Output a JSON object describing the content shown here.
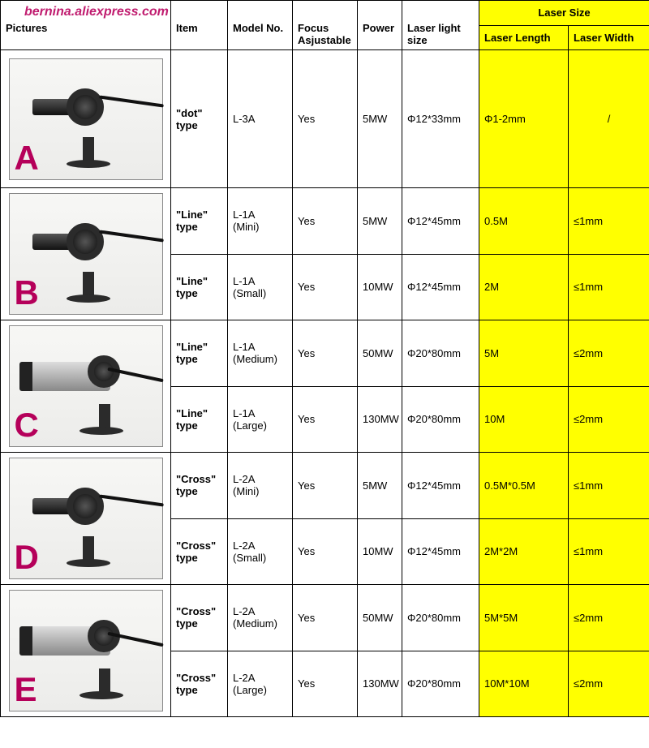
{
  "watermark": "bernina.aliexpress.com",
  "headers": {
    "pictures": "Pictures",
    "item": "Item",
    "model": "Model No.",
    "focus": "Focus Asjustable",
    "power": "Power",
    "light": "Laser light size",
    "laser_size_group": "Laser Size",
    "laser_length": "Laser Length",
    "laser_width": "Laser Width"
  },
  "colors": {
    "highlight": "#ffff00",
    "border": "#000000",
    "watermark": "#c01c6f",
    "letter": "#b5005a"
  },
  "groups": [
    {
      "letter": "A",
      "shape": "small",
      "rows": [
        {
          "item": "\"dot\" type",
          "model": "L-3A",
          "model_sub": "",
          "focus": "Yes",
          "power": "5MW",
          "light": "Φ12*33mm",
          "len": "Φ1-2mm",
          "wid": "/"
        }
      ]
    },
    {
      "letter": "B",
      "shape": "small",
      "rows": [
        {
          "item": "\"Line\" type",
          "model": "L-1A",
          "model_sub": "(Mini)",
          "focus": "Yes",
          "power": "5MW",
          "light": "Φ12*45mm",
          "len": "0.5M",
          "wid": "≤1mm"
        },
        {
          "item": "\"Line\" type",
          "model": "L-1A",
          "model_sub": "(Small)",
          "focus": "Yes",
          "power": "10MW",
          "light": "Φ12*45mm",
          "len": "2M",
          "wid": "≤1mm"
        }
      ]
    },
    {
      "letter": "C",
      "shape": "large",
      "rows": [
        {
          "item": "\"Line\" type",
          "model": "L-1A",
          "model_sub": "(Medium)",
          "focus": "Yes",
          "power": "50MW",
          "light": "Φ20*80mm",
          "len": "5M",
          "wid": "≤2mm"
        },
        {
          "item": "\"Line\" type",
          "model": "L-1A",
          "model_sub": "(Large)",
          "focus": "Yes",
          "power": "130MW",
          "light": "Φ20*80mm",
          "len": "10M",
          "wid": "≤2mm"
        }
      ]
    },
    {
      "letter": "D",
      "shape": "small",
      "rows": [
        {
          "item": "\"Cross\" type",
          "model": "L-2A",
          "model_sub": "(Mini)",
          "focus": "Yes",
          "power": "5MW",
          "light": "Φ12*45mm",
          "len": "0.5M*0.5M",
          "wid": "≤1mm"
        },
        {
          "item": "\"Cross\" type",
          "model": "L-2A",
          "model_sub": "(Small)",
          "focus": "Yes",
          "power": "10MW",
          "light": "Φ12*45mm",
          "len": "2M*2M",
          "wid": "≤1mm"
        }
      ]
    },
    {
      "letter": "E",
      "shape": "large",
      "rows": [
        {
          "item": "\"Cross\" type",
          "model": "L-2A",
          "model_sub": "(Medium)",
          "focus": "Yes",
          "power": "50MW",
          "light": "Φ20*80mm",
          "len": "5M*5M",
          "wid": "≤2mm"
        },
        {
          "item": "\"Cross\" type",
          "model": "L-2A",
          "model_sub": "(Large)",
          "focus": "Yes",
          "power": "130MW",
          "light": "Φ20*80mm",
          "len": "10M*10M",
          "wid": "≤2mm"
        }
      ]
    }
  ]
}
